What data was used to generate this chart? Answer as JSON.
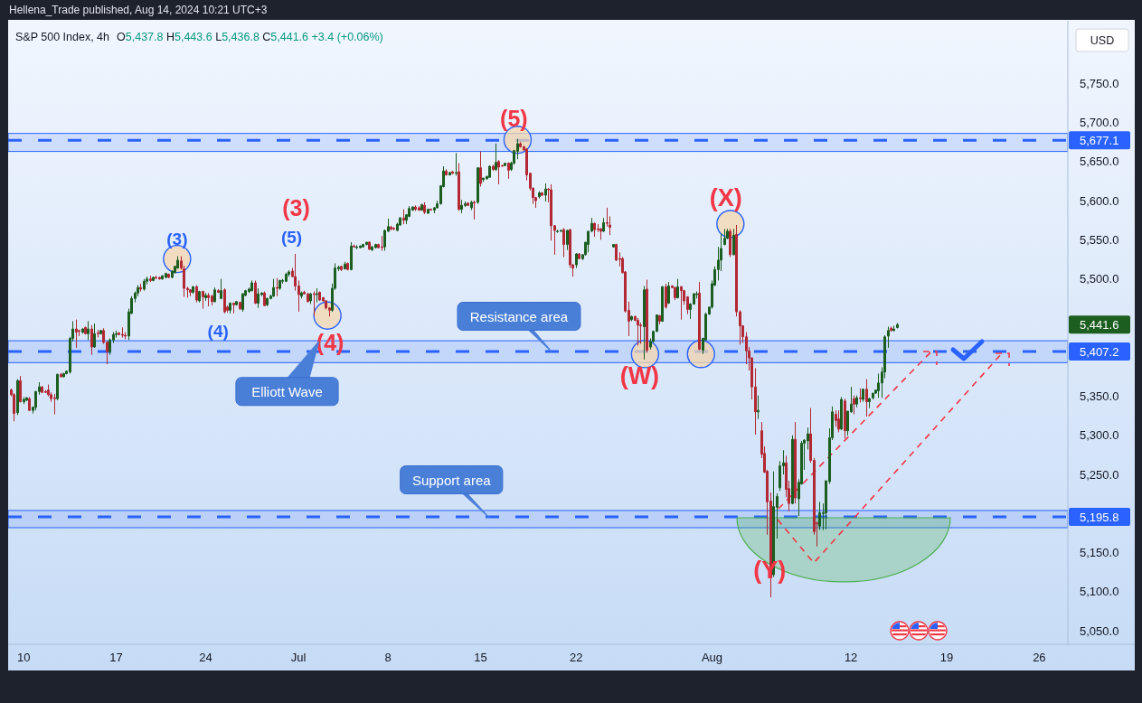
{
  "chart_data": {
    "type": "candlestick",
    "title": "S&P 500 Index, 4h",
    "subtitle": "O5,437.8 H5,443.6 L5,436.8 C5,441.6 +3.4 (+0.06%)",
    "ylabel": "USD",
    "categories": [
      null,
      null,
      null,
      null,
      "10",
      null,
      null,
      null,
      null,
      null,
      null,
      null,
      null,
      null,
      null,
      null,
      null,
      null,
      null,
      null,
      null,
      null,
      null,
      null,
      null,
      null,
      null,
      null,
      null,
      null,
      null,
      null,
      null,
      null,
      "17",
      null,
      null,
      null,
      null,
      null,
      null,
      null,
      null,
      null,
      null,
      null,
      null,
      null,
      null,
      null,
      null,
      null,
      null,
      null,
      null,
      null,
      null,
      null,
      null,
      null,
      null,
      null,
      null,
      "24",
      null,
      null,
      null,
      null,
      null,
      null,
      null,
      null,
      null,
      null,
      null,
      null,
      null,
      null,
      null,
      null,
      null,
      null,
      null,
      null,
      null,
      null,
      null,
      null,
      null,
      null,
      null,
      null,
      null,
      "Jul",
      null,
      null,
      null,
      null,
      null,
      null,
      null,
      null,
      null,
      null,
      null,
      null,
      null,
      null,
      null,
      null,
      null,
      null,
      null,
      null,
      null,
      null,
      null,
      null,
      null,
      null,
      null,
      null,
      "8",
      null,
      null,
      null,
      null,
      null,
      null,
      null,
      null,
      null,
      null,
      null,
      null,
      null,
      null,
      null,
      null,
      null,
      null,
      null,
      null,
      null,
      null,
      null,
      null,
      null,
      null,
      null,
      null,
      null,
      "15",
      null,
      null,
      null,
      null,
      null,
      null,
      null,
      null,
      null,
      null,
      null,
      null,
      null,
      null,
      null,
      null,
      null,
      null,
      null,
      null,
      null,
      null,
      null,
      null,
      null,
      null,
      null,
      null,
      null,
      null,
      "22",
      null,
      null,
      null,
      null,
      null,
      null,
      null,
      null,
      null,
      null,
      null,
      null,
      null,
      null,
      null,
      null,
      null,
      null,
      null,
      null,
      null,
      null,
      null,
      null,
      null,
      null,
      null,
      null,
      null,
      null,
      null,
      null,
      null,
      null,
      null,
      null,
      null,
      null,
      null,
      null,
      null,
      null,
      null,
      "Aug",
      null,
      null,
      null,
      null,
      null,
      null,
      null,
      null,
      null,
      null,
      null,
      null,
      null,
      null,
      null,
      null,
      null,
      null,
      null,
      null,
      null,
      null,
      null,
      null,
      null,
      null,
      null,
      null,
      null,
      null,
      null,
      null,
      null,
      null,
      null,
      null,
      null,
      null,
      null,
      null,
      null,
      null,
      null,
      null,
      "12",
      null,
      null,
      null,
      null,
      null,
      null,
      null,
      null,
      null,
      null,
      null,
      null,
      null,
      null,
      null,
      null,
      null,
      null,
      null,
      null,
      null,
      null,
      null,
      null,
      null,
      null,
      null,
      null,
      null,
      null,
      "19",
      null,
      null,
      null,
      null,
      null,
      null,
      null,
      null,
      null,
      null,
      null,
      null,
      null,
      null,
      null,
      null,
      null,
      null,
      null,
      null,
      null,
      null,
      null,
      null,
      null,
      null,
      null,
      null,
      null,
      "26",
      null,
      null,
      null,
      null,
      null,
      null,
      null,
      null,
      null
    ],
    "ohlc": [
      [
        5358,
        5360,
        5350,
        5352
      ],
      [
        5352,
        5354,
        5318,
        5328
      ],
      [
        5329,
        5372,
        5326,
        5370
      ],
      [
        5370,
        5376,
        5342,
        5343
      ],
      [
        5343,
        5349,
        5340,
        5346
      ],
      [
        5345,
        5349,
        5344,
        5348
      ],
      [
        5347,
        5349,
        5331,
        5332
      ],
      [
        5332,
        5337,
        5328,
        5336
      ],
      [
        5336,
        5357,
        5332,
        5356
      ],
      [
        5356,
        5368,
        5352,
        5362
      ],
      [
        5362,
        5363,
        5354,
        5355
      ],
      [
        5356,
        5358,
        5354,
        5355
      ],
      [
        5358,
        5365,
        5350,
        5352
      ],
      [
        5352,
        5355,
        5343,
        5347
      ],
      [
        5348,
        5353,
        5327,
        5347
      ],
      [
        5347,
        5379,
        5345,
        5378
      ],
      [
        5378,
        5380,
        5374,
        5375
      ],
      [
        5375,
        5380,
        5374,
        5379
      ],
      [
        5379,
        5383,
        5378,
        5382
      ],
      [
        5381,
        5426,
        5379,
        5424
      ],
      [
        5424,
        5446,
        5420,
        5436
      ],
      [
        5436,
        5448,
        5412,
        5432
      ],
      [
        5434,
        5435,
        5427,
        5433
      ],
      [
        5432,
        5437,
        5430,
        5436
      ],
      [
        5438,
        5439,
        5429,
        5430
      ],
      [
        5430,
        5446,
        5422,
        5436
      ],
      [
        5436,
        5441,
        5403,
        5413
      ],
      [
        5413,
        5443,
        5412,
        5430
      ],
      [
        5431,
        5435,
        5425,
        5430
      ],
      [
        5430,
        5435,
        5429,
        5434
      ],
      [
        5434,
        5437,
        5417,
        5419
      ],
      [
        5419,
        5421,
        5391,
        5407
      ],
      [
        5407,
        5424,
        5403,
        5422
      ],
      [
        5422,
        5432,
        5418,
        5429
      ],
      [
        5429,
        5434,
        5425,
        5430
      ],
      [
        5431,
        5432,
        5428,
        5429
      ],
      [
        5429,
        5438,
        5425,
        5428
      ],
      [
        5428,
        5432,
        5423,
        5427
      ],
      [
        5427,
        5462,
        5422,
        5458
      ],
      [
        5456,
        5478,
        5455,
        5475
      ],
      [
        5475,
        5484,
        5470,
        5482
      ],
      [
        5482,
        5492,
        5478,
        5489
      ],
      [
        5489,
        5494,
        5484,
        5487
      ],
      [
        5487,
        5500,
        5485,
        5497
      ],
      [
        5497,
        5503,
        5493,
        5500
      ],
      [
        5500,
        5504,
        5496,
        5498
      ],
      [
        5498,
        5503,
        5497,
        5502
      ],
      [
        5502,
        5504,
        5500,
        5501
      ],
      [
        5502,
        5503,
        5499,
        5500
      ],
      [
        5500,
        5505,
        5499,
        5504
      ],
      [
        5502,
        5508,
        5501,
        5507
      ],
      [
        5506,
        5507,
        5501,
        5502
      ],
      [
        5502,
        5511,
        5501,
        5510
      ],
      [
        5508,
        5517,
        5507,
        5516
      ],
      [
        5514,
        5529,
        5513,
        5524
      ],
      [
        5523,
        5529,
        5512,
        5514
      ],
      [
        5513,
        5517,
        5477,
        5488
      ],
      [
        5488,
        5490,
        5476,
        5486
      ],
      [
        5486,
        5487,
        5478,
        5483
      ],
      [
        5483,
        5491,
        5481,
        5490
      ],
      [
        5490,
        5492,
        5470,
        5473
      ],
      [
        5472,
        5485,
        5470,
        5484
      ],
      [
        5484,
        5485,
        5462,
        5477
      ],
      [
        5476,
        5482,
        5472,
        5479
      ],
      [
        5479,
        5482,
        5465,
        5476
      ],
      [
        5478,
        5480,
        5466,
        5471
      ],
      [
        5471,
        5489,
        5470,
        5486
      ],
      [
        5485,
        5487,
        5482,
        5483
      ],
      [
        5475,
        5500,
        5474,
        5485
      ],
      [
        5486,
        5488,
        5456,
        5458
      ],
      [
        5464,
        5466,
        5457,
        5460
      ],
      [
        5460,
        5470,
        5456,
        5469
      ],
      [
        5469,
        5470,
        5456,
        5467
      ],
      [
        5467,
        5472,
        5466,
        5471
      ],
      [
        5470,
        5471,
        5460,
        5462
      ],
      [
        5461,
        5482,
        5458,
        5481
      ],
      [
        5479,
        5486,
        5478,
        5485
      ],
      [
        5484,
        5489,
        5482,
        5487
      ],
      [
        5485,
        5498,
        5484,
        5495
      ],
      [
        5495,
        5498,
        5468,
        5469
      ],
      [
        5469,
        5488,
        5463,
        5481
      ],
      [
        5480,
        5483,
        5478,
        5482
      ],
      [
        5482,
        5484,
        5465,
        5466
      ],
      [
        5467,
        5476,
        5465,
        5475
      ],
      [
        5475,
        5480,
        5474,
        5478
      ],
      [
        5478,
        5500,
        5477,
        5489
      ],
      [
        5489,
        5501,
        5478,
        5488
      ],
      [
        5488,
        5499,
        5486,
        5498
      ],
      [
        5497,
        5500,
        5494,
        5498
      ],
      [
        5497,
        5508,
        5496,
        5506
      ],
      [
        5506,
        5511,
        5503,
        5509
      ],
      [
        5510,
        5514,
        5502,
        5503
      ],
      [
        5503,
        5532,
        5485,
        5491
      ],
      [
        5491,
        5498,
        5458,
        5480
      ],
      [
        5478,
        5484,
        5475,
        5482
      ],
      [
        5483,
        5485,
        5480,
        5481
      ],
      [
        5481,
        5482,
        5470,
        5471
      ],
      [
        5472,
        5482,
        5468,
        5481
      ],
      [
        5481,
        5484,
        5453,
        5480
      ],
      [
        5480,
        5488,
        5470,
        5481
      ],
      [
        5483,
        5484,
        5472,
        5473
      ],
      [
        5476,
        5477,
        5471,
        5472
      ],
      [
        5472,
        5473,
        5461,
        5463
      ],
      [
        5463,
        5464,
        5452,
        5460
      ],
      [
        5460,
        5494,
        5458,
        5488
      ],
      [
        5488,
        5520,
        5486,
        5514
      ],
      [
        5513,
        5517,
        5510,
        5515
      ],
      [
        5516,
        5517,
        5510,
        5512
      ],
      [
        5513,
        5522,
        5512,
        5519
      ],
      [
        5520,
        5521,
        5511,
        5512
      ],
      [
        5512,
        5547,
        5511,
        5542
      ],
      [
        5542,
        5544,
        5540,
        5541
      ],
      [
        5540,
        5543,
        5538,
        5541
      ],
      [
        5540,
        5543,
        5539,
        5542
      ],
      [
        5541,
        5545,
        5540,
        5544
      ],
      [
        5544,
        5547,
        5543,
        5547
      ],
      [
        5547,
        5548,
        5537,
        5538
      ],
      [
        5537,
        5542,
        5536,
        5541
      ],
      [
        5540,
        5545,
        5539,
        5544
      ],
      [
        5544,
        5545,
        5539,
        5540
      ],
      [
        5541,
        5555,
        5536,
        5540
      ],
      [
        5541,
        5563,
        5536,
        5562
      ],
      [
        5561,
        5577,
        5560,
        5567
      ],
      [
        5566,
        5568,
        5562,
        5564
      ],
      [
        5565,
        5566,
        5562,
        5564
      ],
      [
        5562,
        5572,
        5561,
        5570
      ],
      [
        5569,
        5579,
        5568,
        5578
      ],
      [
        5578,
        5589,
        5570,
        5575
      ],
      [
        5575,
        5583,
        5570,
        5582
      ],
      [
        5580,
        5593,
        5579,
        5590
      ],
      [
        5588,
        5593,
        5587,
        5592
      ],
      [
        5592,
        5594,
        5587,
        5589
      ],
      [
        5591,
        5593,
        5587,
        5588
      ],
      [
        5588,
        5596,
        5587,
        5595
      ],
      [
        5594,
        5598,
        5583,
        5585
      ],
      [
        5584,
        5590,
        5583,
        5589
      ],
      [
        5589,
        5590,
        5588,
        5588
      ],
      [
        5588,
        5592,
        5584,
        5591
      ],
      [
        5591,
        5600,
        5590,
        5596
      ],
      [
        5596,
        5620,
        5595,
        5619
      ],
      [
        5618,
        5644,
        5617,
        5638
      ],
      [
        5638,
        5640,
        5632,
        5633
      ],
      [
        5633,
        5637,
        5632,
        5636
      ],
      [
        5637,
        5638,
        5634,
        5635
      ],
      [
        5635,
        5661,
        5632,
        5636
      ],
      [
        5637,
        5648,
        5587,
        5589
      ],
      [
        5589,
        5601,
        5584,
        5594
      ],
      [
        5594,
        5599,
        5592,
        5596
      ],
      [
        5597,
        5598,
        5593,
        5594
      ],
      [
        5591,
        5600,
        5588,
        5598
      ],
      [
        5598,
        5600,
        5576,
        5597
      ],
      [
        5598,
        5643,
        5596,
        5642
      ],
      [
        5642,
        5663,
        5618,
        5622
      ],
      [
        5627,
        5629,
        5624,
        5629
      ],
      [
        5628,
        5632,
        5627,
        5631
      ],
      [
        5630,
        5645,
        5629,
        5644
      ],
      [
        5644,
        5646,
        5638,
        5640
      ],
      [
        5640,
        5673,
        5638,
        5649
      ],
      [
        5650,
        5652,
        5621,
        5643
      ],
      [
        5645,
        5646,
        5644,
        5644
      ],
      [
        5645,
        5648,
        5644,
        5648
      ],
      [
        5648,
        5649,
        5628,
        5639
      ],
      [
        5640,
        5650,
        5638,
        5648
      ],
      [
        5648,
        5665,
        5646,
        5664
      ],
      [
        5663,
        5679,
        5653,
        5673
      ],
      [
        5673,
        5675,
        5668,
        5669
      ],
      [
        5669,
        5670,
        5664,
        5665
      ],
      [
        5666,
        5667,
        5626,
        5633
      ],
      [
        5635,
        5636,
        5613,
        5616
      ],
      [
        5616,
        5617,
        5596,
        5604
      ],
      [
        5604,
        5605,
        5591,
        5600
      ],
      [
        5605,
        5612,
        5603,
        5610
      ],
      [
        5610,
        5611,
        5606,
        5607
      ],
      [
        5607,
        5622,
        5599,
        5615
      ],
      [
        5615,
        5616,
        5598,
        5614
      ],
      [
        5614,
        5621,
        5549,
        5568
      ],
      [
        5568,
        5569,
        5531,
        5562
      ],
      [
        5561,
        5563,
        5559,
        5561
      ],
      [
        5561,
        5563,
        5560,
        5562
      ],
      [
        5563,
        5565,
        5528,
        5544
      ],
      [
        5544,
        5563,
        5537,
        5562
      ],
      [
        5563,
        5564,
        5514,
        5518
      ],
      [
        5518,
        5519,
        5503,
        5514
      ],
      [
        5518,
        5533,
        5514,
        5532
      ],
      [
        5532,
        5533,
        5525,
        5526
      ],
      [
        5526,
        5531,
        5524,
        5531
      ],
      [
        5531,
        5547,
        5530,
        5547
      ],
      [
        5544,
        5561,
        5534,
        5561
      ],
      [
        5561,
        5578,
        5560,
        5571
      ],
      [
        5571,
        5572,
        5554,
        5563
      ],
      [
        5564,
        5570,
        5560,
        5563
      ],
      [
        5564,
        5565,
        5550,
        5561
      ],
      [
        5561,
        5578,
        5560,
        5572
      ],
      [
        5572,
        5591,
        5567,
        5571
      ],
      [
        5569,
        5580,
        5556,
        5566
      ],
      [
        5541,
        5544,
        5540,
        5544
      ],
      [
        5544,
        5545,
        5523,
        5524
      ],
      [
        5526,
        5534,
        5516,
        5525
      ],
      [
        5526,
        5528,
        5507,
        5508
      ],
      [
        5509,
        5510,
        5457,
        5459
      ],
      [
        5460,
        5471,
        5427,
        5446
      ],
      [
        5448,
        5453,
        5446,
        5452
      ],
      [
        5452,
        5453,
        5446,
        5447
      ],
      [
        5447,
        5450,
        5415,
        5441
      ],
      [
        5441,
        5444,
        5417,
        5440
      ],
      [
        5439,
        5491,
        5397,
        5486
      ],
      [
        5487,
        5499,
        5406,
        5409
      ],
      [
        5413,
        5424,
        5410,
        5420
      ],
      [
        5420,
        5434,
        5419,
        5433
      ],
      [
        5433,
        5454,
        5432,
        5454
      ],
      [
        5453,
        5454,
        5442,
        5446
      ],
      [
        5446,
        5491,
        5445,
        5490
      ],
      [
        5490,
        5494,
        5462,
        5464
      ],
      [
        5469,
        5496,
        5468,
        5491
      ],
      [
        5491,
        5492,
        5488,
        5489
      ],
      [
        5489,
        5490,
        5473,
        5476
      ],
      [
        5476,
        5500,
        5475,
        5490
      ],
      [
        5490,
        5491,
        5448,
        5485
      ],
      [
        5485,
        5486,
        5467,
        5472
      ],
      [
        5477,
        5478,
        5455,
        5461
      ],
      [
        5461,
        5469,
        5449,
        5468
      ],
      [
        5468,
        5482,
        5467,
        5481
      ],
      [
        5480,
        5484,
        5475,
        5481
      ],
      [
        5482,
        5496,
        5409,
        5410
      ],
      [
        5409,
        5425,
        5404,
        5424
      ],
      [
        5422,
        5457,
        5421,
        5455
      ],
      [
        5455,
        5464,
        5454,
        5464
      ],
      [
        5464,
        5498,
        5462,
        5494
      ],
      [
        5492,
        5516,
        5491,
        5512
      ],
      [
        5512,
        5541,
        5498,
        5524
      ],
      [
        5524,
        5558,
        5510,
        5539
      ],
      [
        5544,
        5564,
        5543,
        5552
      ],
      [
        5552,
        5564,
        5551,
        5561
      ],
      [
        5561,
        5564,
        5528,
        5531
      ],
      [
        5531,
        5564,
        5530,
        5556
      ],
      [
        5557,
        5569,
        5452,
        5458
      ],
      [
        5458,
        5460,
        5416,
        5440
      ],
      [
        5440,
        5441,
        5418,
        5426
      ],
      [
        5426,
        5432,
        5391,
        5408
      ],
      [
        5408,
        5413,
        5383,
        5399
      ],
      [
        5399,
        5400,
        5346,
        5362
      ],
      [
        5362,
        5386,
        5301,
        5330
      ],
      [
        5330,
        5351,
        5321,
        5332
      ],
      [
        5306,
        5317,
        5271,
        5276
      ],
      [
        5277,
        5286,
        5252,
        5253
      ],
      [
        5254,
        5256,
        5173,
        5215
      ],
      [
        5216,
        5227,
        5093,
        5118
      ],
      [
        5122,
        5254,
        5119,
        5209
      ],
      [
        5208,
        5226,
        5168,
        5222
      ],
      [
        5233,
        5267,
        5229,
        5261
      ],
      [
        5261,
        5281,
        5250,
        5265
      ],
      [
        5265,
        5274,
        5221,
        5231
      ],
      [
        5232,
        5242,
        5203,
        5213
      ],
      [
        5213,
        5300,
        5212,
        5295
      ],
      [
        5295,
        5317,
        5213,
        5220
      ],
      [
        5219,
        5244,
        5197,
        5240
      ],
      [
        5238,
        5293,
        5237,
        5290
      ],
      [
        5290,
        5295,
        5256,
        5294
      ],
      [
        5293,
        5310,
        5282,
        5302
      ],
      [
        5302,
        5335,
        5265,
        5268
      ],
      [
        5268,
        5271,
        5173,
        5177
      ],
      [
        5188,
        5190,
        5158,
        5187
      ],
      [
        5184,
        5215,
        5179,
        5201
      ],
      [
        5200,
        5213,
        5179,
        5201
      ],
      [
        5201,
        5242,
        5180,
        5242
      ],
      [
        5241,
        5309,
        5238,
        5297
      ],
      [
        5297,
        5337,
        5294,
        5330
      ],
      [
        5327,
        5332,
        5311,
        5319
      ],
      [
        5321,
        5332,
        5304,
        5308
      ],
      [
        5308,
        5349,
        5307,
        5346
      ],
      [
        5344,
        5347,
        5296,
        5306
      ],
      [
        5306,
        5331,
        5300,
        5331
      ],
      [
        5330,
        5362,
        5329,
        5340
      ],
      [
        5347,
        5351,
        5327,
        5340
      ],
      [
        5340,
        5351,
        5336,
        5348
      ],
      [
        5348,
        5360,
        5342,
        5347
      ],
      [
        5346,
        5360,
        5343,
        5359
      ],
      [
        5359,
        5372,
        5324,
        5343
      ],
      [
        5343,
        5348,
        5335,
        5347
      ],
      [
        5348,
        5354,
        5346,
        5354
      ],
      [
        5354,
        5358,
        5353,
        5358
      ],
      [
        5357,
        5379,
        5348,
        5367
      ],
      [
        5367,
        5387,
        5348,
        5381
      ],
      [
        5381,
        5428,
        5373,
        5426
      ],
      [
        5427,
        5439,
        5412,
        5434
      ],
      [
        5437,
        5439,
        5433,
        5434
      ],
      [
        5434,
        5440,
        5433,
        5436
      ],
      [
        5437.8,
        5443.6,
        5436.8,
        5441.6
      ],
      null,
      null,
      null,
      null,
      null,
      null,
      null,
      null,
      null,
      null,
      null,
      null,
      null,
      null,
      null,
      null,
      null,
      null,
      null,
      null,
      null,
      null,
      null,
      null,
      null,
      null,
      null,
      null,
      null,
      null,
      null,
      null,
      null,
      null,
      null,
      null,
      null,
      null,
      null,
      null,
      null,
      null,
      null,
      null,
      null,
      null,
      null,
      null,
      null,
      null,
      null,
      null,
      null,
      null,
      null
    ],
    "colors": [
      "#b22833",
      "#b22833",
      "#1b5e20",
      "#b22833",
      "#1b5e20",
      "#1b5e20",
      "#b22833",
      "#1b5e20",
      "#1b5e20",
      "#1b5e20",
      "#b22833",
      "#b22833",
      "#b22833",
      "#b22833",
      "#b22833",
      "#1b5e20",
      "#b22833",
      "#1b5e20",
      "#1b5e20",
      "#1b5e20",
      "#1b5e20",
      "#b22833",
      "#b22833",
      "#1b5e20",
      "#b22833",
      "#1b5e20",
      "#b22833",
      "#1b5e20",
      "#b22833",
      "#1b5e20",
      "#b22833",
      "#b22833",
      "#1b5e20",
      "#1b5e20",
      "#1b5e20",
      "#b22833",
      "#b22833",
      "#b22833",
      "#1b5e20",
      "#1b5e20",
      "#1b5e20",
      "#1b5e20",
      "#b22833",
      "#1b5e20",
      "#1b5e20",
      "#b22833",
      "#1b5e20",
      "#b22833",
      "#b22833",
      "#1b5e20",
      "#1b5e20",
      "#b22833",
      "#1b5e20",
      "#1b5e20",
      "#1b5e20",
      "#b22833",
      "#b22833",
      "#b22833",
      "#b22833",
      "#1b5e20",
      "#b22833",
      "#1b5e20",
      "#b22833",
      "#1b5e20",
      "#b22833",
      "#b22833",
      "#1b5e20",
      "#b22833",
      "#1b5e20",
      "#b22833",
      "#b22833",
      "#1b5e20",
      "#b22833",
      "#1b5e20",
      "#b22833",
      "#1b5e20",
      "#1b5e20",
      "#1b5e20",
      "#1b5e20",
      "#b22833",
      "#1b5e20",
      "#1b5e20",
      "#b22833",
      "#1b5e20",
      "#1b5e20",
      "#1b5e20",
      "#b22833",
      "#1b5e20",
      "#1b5e20",
      "#1b5e20",
      "#1b5e20",
      "#b22833",
      "#b22833",
      "#b22833",
      "#1b5e20",
      "#b22833",
      "#b22833",
      "#1b5e20",
      "#b22833",
      "#1b5e20",
      "#b22833",
      "#b22833",
      "#b22833",
      "#b22833",
      "#1b5e20",
      "#1b5e20",
      "#1b5e20",
      "#b22833",
      "#1b5e20",
      "#b22833",
      "#1b5e20",
      "#b22833",
      "#1b5e20",
      "#1b5e20",
      "#1b5e20",
      "#1b5e20",
      "#b22833",
      "#1b5e20",
      "#1b5e20",
      "#b22833",
      "#b22833",
      "#1b5e20",
      "#1b5e20",
      "#b22833",
      "#b22833",
      "#1b5e20",
      "#1b5e20",
      "#b22833",
      "#1b5e20",
      "#1b5e20",
      "#1b5e20",
      "#b22833",
      "#b22833",
      "#1b5e20",
      "#b22833",
      "#1b5e20",
      "#b22833",
      "#1b5e20",
      "#1b5e20",
      "#1b5e20",
      "#1b5e20",
      "#b22833",
      "#1b5e20",
      "#b22833",
      "#1b5e20",
      "#b22833",
      "#1b5e20",
      "#1b5e20",
      "#b22833",
      "#1b5e20",
      "#b22833",
      "#1b5e20",
      "#b22833",
      "#1b5e20",
      "#1b5e20",
      "#1b5e20",
      "#b22833",
      "#1b5e20",
      "#b22833",
      "#b22833",
      "#1b5e20",
      "#b22833",
      "#1b5e20",
      "#1b5e20",
      "#1b5e20",
      "#b22833",
      "#b22833",
      "#b22833",
      "#b22833",
      "#b22833",
      "#b22833",
      "#1b5e20",
      "#b22833",
      "#1b5e20",
      "#b22833",
      "#b22833",
      "#b22833",
      "#1b5e20",
      "#1b5e20",
      "#b22833",
      "#1b5e20",
      "#b22833",
      "#b22833",
      "#1b5e20",
      "#b22833",
      "#1b5e20",
      "#1b5e20",
      "#1b5e20",
      "#1b5e20",
      "#b22833",
      "#b22833",
      "#b22833",
      "#1b5e20",
      "#b22833",
      "#b22833",
      "#1b5e20",
      "#b22833",
      "#b22833",
      "#b22833",
      "#b22833",
      "#b22833",
      "#1b5e20",
      "#b22833",
      "#b22833",
      "#b22833",
      "#1b5e20",
      "#b22833",
      "#1b5e20",
      "#1b5e20",
      "#1b5e20",
      "#b22833",
      "#1b5e20",
      "#b22833",
      "#1b5e20",
      "#b22833",
      "#b22833",
      "#1b5e20",
      "#b22833",
      "#b22833",
      "#b22833",
      "#1b5e20",
      "#1b5e20",
      "#1b5e20",
      "#b22833",
      "#1b5e20",
      "#1b5e20",
      "#1b5e20",
      "#1b5e20",
      "#1b5e20",
      "#1b5e20",
      "#1b5e20",
      "#1b5e20",
      "#1b5e20",
      "#b22833",
      "#1b5e20",
      "#b22833",
      "#b22833",
      "#b22833",
      "#b22833",
      "#b22833",
      "#b22833",
      "#b22833",
      "#1b5e20",
      "#b22833",
      "#b22833",
      "#b22833",
      "#b22833",
      "#1b5e20",
      "#1b5e20",
      "#1b5e20",
      "#1b5e20",
      "#b22833",
      "#b22833",
      "#1b5e20",
      "#b22833",
      "#1b5e20",
      "#1b5e20",
      "#1b5e20",
      "#1b5e20",
      "#b22833",
      "#b22833",
      "#b22833",
      "#1b5e20",
      "#1b5e20",
      "#1b5e20",
      "#1b5e20",
      "#1b5e20",
      "#b22833",
      "#b22833",
      "#1b5e20",
      "#b22833",
      "#1b5e20",
      "#1b5e20",
      "#b22833",
      "#1b5e20",
      "#b22833",
      "#1b5e20",
      "#b22833",
      "#1b5e20",
      "#1b5e20",
      "#1b5e20",
      "#1b5e20",
      "#1b5e20",
      "#1b5e20",
      "#1b5e20",
      "#b22833",
      "#1b5e20",
      "#1b5e20",
      null,
      null,
      null,
      null,
      null,
      null,
      null,
      null,
      null,
      null,
      null,
      null,
      null,
      null,
      null,
      null,
      null,
      null,
      null,
      null,
      null,
      null,
      null,
      null,
      null,
      null,
      null,
      null,
      null,
      null,
      null,
      null,
      null,
      null,
      null,
      null,
      null,
      null,
      null,
      null,
      null,
      null,
      null,
      null,
      null,
      null,
      null,
      null,
      null,
      null,
      null,
      null,
      null,
      null,
      null
    ],
    "ylim": [
      5033,
      5830
    ],
    "yticks": [
      {
        "value": 5050,
        "label": "5,050.0"
      },
      {
        "value": 5100,
        "label": "5,100.0"
      },
      {
        "value": 5150,
        "label": "5,150.0"
      },
      {
        "value": 5250,
        "label": "5,250.0"
      },
      {
        "value": 5300,
        "label": "5,300.0"
      },
      {
        "value": 5350,
        "label": "5,350.0"
      },
      {
        "value": 5500,
        "label": "5,500.0"
      },
      {
        "value": 5550,
        "label": "5,550.0"
      },
      {
        "value": 5600,
        "label": "5,600.0"
      },
      {
        "value": 5650,
        "label": "5,650.0"
      },
      {
        "value": 5700,
        "label": "5,700.0"
      },
      {
        "value": 5750,
        "label": "5,750.0"
      }
    ],
    "bands": [
      {
        "axis": "y",
        "from": 5663,
        "to": 5686,
        "color": "#2962ff"
      },
      {
        "axis": "y",
        "from": 5393,
        "to": 5421,
        "color": "#2962ff"
      },
      {
        "axis": "y",
        "from": 5182,
        "to": 5204,
        "color": "#2962ff"
      }
    ],
    "ref_lines": [
      {
        "axis": "y",
        "value": 5677.1,
        "label": "5,677.1",
        "color": "#2962ff",
        "line_style": "dashed"
      },
      {
        "axis": "y",
        "value": 5407.2,
        "label": "5,407.2",
        "color": "#2962ff",
        "line_style": "dashed"
      },
      {
        "axis": "y",
        "value": 5195.8,
        "label": "5,195.8",
        "color": "#2962ff",
        "line_style": "dashed"
      }
    ],
    "annotations": [
      "Hellena_Trade published, Aug 14, 2024 10:21 UTC+3",
      {
        "text": "(5)",
        "y": 5679
      },
      {
        "text": "(3)",
        "y": 5529
      },
      {
        "text": "(5)",
        "y": 5532
      },
      {
        "text": "(3)",
        "y": 5532
      },
      "(4)",
      {
        "text": "(4)",
        "y": 5452
      },
      {
        "text": "(W)",
        "y": 5397
      },
      {
        "text": "(X)",
        "y": 5569
      },
      {
        "text": "(Y)",
        "y": 5093
      },
      {
        "text": "Resistance area",
        "y": 5407.2
      },
      {
        "text": "Support area",
        "y": 5195.8
      },
      "Elliott Wave",
      "5,441.6"
    ]
  }
}
